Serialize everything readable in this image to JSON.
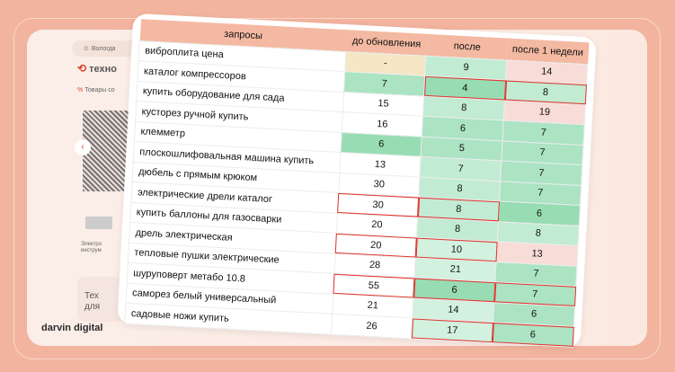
{
  "background_site": {
    "city": "Вологда",
    "logo_text": "техно",
    "goods_link": "Товары со",
    "category": "Электро инструм",
    "promo": "Тех для",
    "brand": "darvin digital"
  },
  "table": {
    "headers": [
      "запросы",
      "до обновления",
      "после",
      "после 1 недели"
    ],
    "rows": [
      {
        "query": "виброплита цена",
        "values": [
          "-",
          "9",
          "14"
        ],
        "colors": [
          "b",
          "l",
          "p"
        ],
        "highlight": []
      },
      {
        "query": "каталог компрессоров",
        "values": [
          "7",
          "4",
          "8"
        ],
        "colors": [
          "m",
          "d",
          "l"
        ],
        "highlight": [
          1,
          2
        ]
      },
      {
        "query": "купить оборудование для сада",
        "values": [
          "15",
          "8",
          "19"
        ],
        "colors": [
          "w",
          "l",
          "p"
        ],
        "highlight": []
      },
      {
        "query": "кусторез ручной купить",
        "values": [
          "16",
          "6",
          "7"
        ],
        "colors": [
          "w",
          "m",
          "m"
        ],
        "highlight": []
      },
      {
        "query": "клемметр",
        "values": [
          "6",
          "5",
          "7"
        ],
        "colors": [
          "d",
          "m",
          "m"
        ],
        "highlight": []
      },
      {
        "query": "плоскошлифовальная машина купить",
        "values": [
          "13",
          "7",
          "7"
        ],
        "colors": [
          "w",
          "l",
          "m"
        ],
        "highlight": []
      },
      {
        "query": "дюбель с прямым крюком",
        "values": [
          "30",
          "8",
          "7"
        ],
        "colors": [
          "w",
          "l",
          "m"
        ],
        "highlight": []
      },
      {
        "query": "электрические дрели каталог",
        "values": [
          "30",
          "8",
          "6"
        ],
        "colors": [
          "w",
          "l",
          "d"
        ],
        "highlight": [
          0,
          1
        ]
      },
      {
        "query": "купить баллоны для газосварки",
        "values": [
          "20",
          "8",
          "8"
        ],
        "colors": [
          "w",
          "l",
          "l"
        ],
        "highlight": []
      },
      {
        "query": "дрель электрическая",
        "values": [
          "20",
          "10",
          "13"
        ],
        "colors": [
          "w",
          "x",
          "p"
        ],
        "highlight": [
          0,
          1
        ]
      },
      {
        "query": "тепловые пушки электрические",
        "values": [
          "28",
          "21",
          "7"
        ],
        "colors": [
          "w",
          "x",
          "m"
        ],
        "highlight": []
      },
      {
        "query": "шуруповерт метабо 10.8",
        "values": [
          "55",
          "6",
          "7"
        ],
        "colors": [
          "w",
          "d",
          "m"
        ],
        "highlight": [
          0,
          1,
          2
        ]
      },
      {
        "query": "саморез белый универсальный",
        "values": [
          "21",
          "14",
          "6"
        ],
        "colors": [
          "w",
          "x",
          "m"
        ],
        "highlight": []
      },
      {
        "query": "садовые ножи купить",
        "values": [
          "26",
          "17",
          "6"
        ],
        "colors": [
          "w",
          "x",
          "m"
        ],
        "highlight": [
          1,
          2
        ]
      }
    ]
  },
  "colors": {
    "header": "#f4b9a2",
    "highlight_border": "#e0312a",
    "background": "#f2b49e"
  }
}
